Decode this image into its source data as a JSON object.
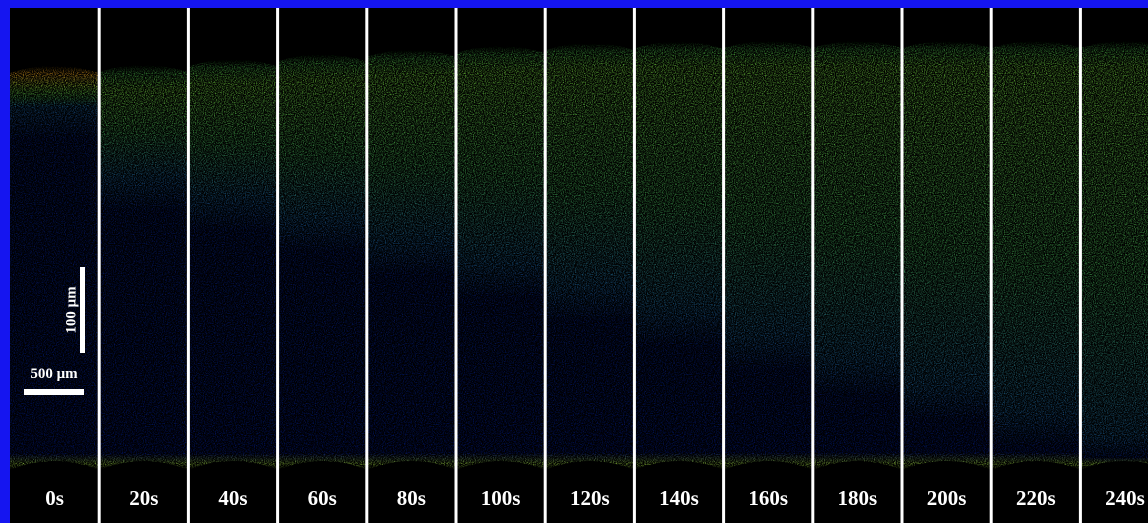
{
  "panels": [
    {
      "label": "0s"
    },
    {
      "label": "20s"
    },
    {
      "label": "40s"
    },
    {
      "label": "60s"
    },
    {
      "label": "80s"
    },
    {
      "label": "100s"
    },
    {
      "label": "120s"
    },
    {
      "label": "140s"
    },
    {
      "label": "160s"
    },
    {
      "label": "180s"
    },
    {
      "label": "200s"
    },
    {
      "label": "220s"
    },
    {
      "label": "240s"
    }
  ],
  "scale_bars": {
    "vertical": "100 μm",
    "horizontal": "500 μm"
  }
}
